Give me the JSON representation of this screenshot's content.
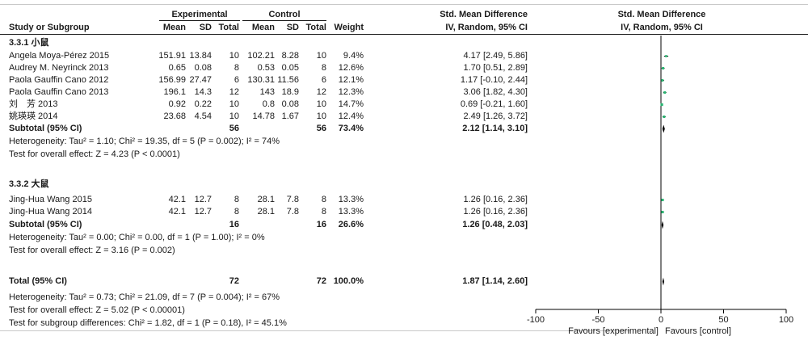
{
  "columns": {
    "experimental_header": "Experimental",
    "control_header": "Control",
    "smd_header_left": "Std. Mean Difference",
    "smd_header_right": "Std. Mean Difference",
    "study": "Study or Subgroup",
    "mean_e": "Mean",
    "sd_e": "SD",
    "total_e": "Total",
    "mean_c": "Mean",
    "sd_c": "SD",
    "total_c": "Total",
    "weight": "Weight",
    "ci_left": "IV, Random, 95% CI",
    "ci_right": "IV, Random, 95% CI"
  },
  "subgroups": [
    {
      "title": "3.3.1 小鼠",
      "studies": [
        {
          "name": "Angela Moya-Pérez 2015",
          "mean_e": "151.91",
          "sd_e": "13.84",
          "total_e": "10",
          "mean_c": "102.21",
          "sd_c": "8.28",
          "total_c": "10",
          "weight": "9.4%",
          "ci": "4.17 [2.49, 5.86]",
          "est": 4.17,
          "lo": 2.49,
          "hi": 5.86,
          "w": 9.4
        },
        {
          "name": "Audrey M. Neyrinck 2013",
          "mean_e": "0.65",
          "sd_e": "0.08",
          "total_e": "8",
          "mean_c": "0.53",
          "sd_c": "0.05",
          "total_c": "8",
          "weight": "12.6%",
          "ci": "1.70 [0.51, 2.89]",
          "est": 1.7,
          "lo": 0.51,
          "hi": 2.89,
          "w": 12.6
        },
        {
          "name": "Paola Gauffin Cano 2012",
          "mean_e": "156.99",
          "sd_e": "27.47",
          "total_e": "6",
          "mean_c": "130.31",
          "sd_c": "11.56",
          "total_c": "6",
          "weight": "12.1%",
          "ci": "1.17 [-0.10, 2.44]",
          "est": 1.17,
          "lo": -0.1,
          "hi": 2.44,
          "w": 12.1
        },
        {
          "name": "Paola Gauffin Cano 2013",
          "mean_e": "196.1",
          "sd_e": "14.3",
          "total_e": "12",
          "mean_c": "143",
          "sd_c": "18.9",
          "total_c": "12",
          "weight": "12.3%",
          "ci": "3.06 [1.82, 4.30]",
          "est": 3.06,
          "lo": 1.82,
          "hi": 4.3,
          "w": 12.3
        },
        {
          "name": "刘　芳 2013",
          "mean_e": "0.92",
          "sd_e": "0.22",
          "total_e": "10",
          "mean_c": "0.8",
          "sd_c": "0.08",
          "total_c": "10",
          "weight": "14.7%",
          "ci": "0.69 [-0.21, 1.60]",
          "est": 0.69,
          "lo": -0.21,
          "hi": 1.6,
          "w": 14.7
        },
        {
          "name": "姚瑛瑛 2014",
          "mean_e": "23.68",
          "sd_e": "4.54",
          "total_e": "10",
          "mean_c": "14.78",
          "sd_c": "1.67",
          "total_c": "10",
          "weight": "12.4%",
          "ci": "2.49 [1.26, 3.72]",
          "est": 2.49,
          "lo": 1.26,
          "hi": 3.72,
          "w": 12.4
        }
      ],
      "subtotal": {
        "label": "Subtotal (95% CI)",
        "total_e": "56",
        "total_c": "56",
        "weight": "73.4%",
        "ci": "2.12 [1.14, 3.10]",
        "est": 2.12,
        "lo": 1.14,
        "hi": 3.1
      },
      "heterogeneity": "Heterogeneity: Tau² = 1.10; Chi² = 19.35, df = 5 (P = 0.002); I² = 74%",
      "overall_effect": "Test for overall effect: Z = 4.23 (P < 0.0001)"
    },
    {
      "title": "3.3.2 大鼠",
      "studies": [
        {
          "name": "Jing-Hua Wang 2015",
          "mean_e": "42.1",
          "sd_e": "12.7",
          "total_e": "8",
          "mean_c": "28.1",
          "sd_c": "7.8",
          "total_c": "8",
          "weight": "13.3%",
          "ci": "1.26 [0.16, 2.36]",
          "est": 1.26,
          "lo": 0.16,
          "hi": 2.36,
          "w": 13.3
        },
        {
          "name": "Jing-Hua Wang 2014",
          "mean_e": "42.1",
          "sd_e": "12.7",
          "total_e": "8",
          "mean_c": "28.1",
          "sd_c": "7.8",
          "total_c": "8",
          "weight": "13.3%",
          "ci": "1.26 [0.16, 2.36]",
          "est": 1.26,
          "lo": 0.16,
          "hi": 2.36,
          "w": 13.3
        }
      ],
      "subtotal": {
        "label": "Subtotal (95% CI)",
        "total_e": "16",
        "total_c": "16",
        "weight": "26.6%",
        "ci": "1.26 [0.48, 2.03]",
        "est": 1.26,
        "lo": 0.48,
        "hi": 2.03
      },
      "heterogeneity": "Heterogeneity: Tau² = 0.00; Chi² = 0.00, df = 1 (P = 1.00); I² = 0%",
      "overall_effect": "Test for overall effect: Z = 3.16 (P = 0.002)"
    }
  ],
  "total": {
    "label": "Total (95% CI)",
    "total_e": "72",
    "total_c": "72",
    "weight": "100.0%",
    "ci": "1.87 [1.14, 2.60]",
    "est": 1.87,
    "lo": 1.14,
    "hi": 2.6,
    "heterogeneity": "Heterogeneity: Tau² = 0.73; Chi² = 21.09, df = 7 (P = 0.004); I² = 67%",
    "overall_effect": "Test for overall effect: Z = 5.02 (P < 0.00001)",
    "subgroup_diff": "Test for subgroup differences: Chi² = 1.82, df = 1 (P = 0.18), I² = 45.1%"
  },
  "chart_data": {
    "type": "forest",
    "xlim": [
      -100,
      100
    ],
    "xticks": [
      "-100",
      "-50",
      "0",
      "50",
      "100"
    ],
    "favours_left": "Favours [experimental]",
    "favours_right": "Favours [control]",
    "colors": {
      "study_marker": "#2bb673",
      "diamond": "#000000",
      "text": "#1a1a1a"
    }
  }
}
